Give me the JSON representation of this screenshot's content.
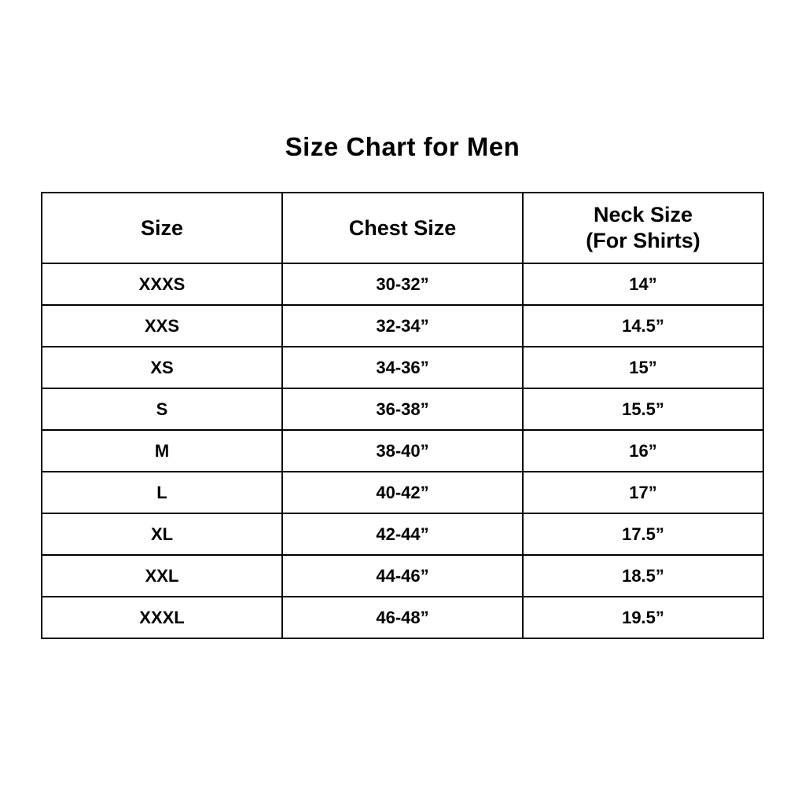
{
  "title": "Size Chart for Men",
  "colors": {
    "background": "#ffffff",
    "border": "#000000",
    "text": "#000000"
  },
  "table": {
    "headers": {
      "size": "Size",
      "chest": "Chest Size",
      "neck_line1": "Neck Size",
      "neck_line2": "(For Shirts)"
    },
    "rows": [
      [
        "XXXS",
        "30-32”",
        "14”"
      ],
      [
        "XXS",
        "32-34”",
        "14.5”"
      ],
      [
        "XS",
        "34-36”",
        "15”"
      ],
      [
        "S",
        "36-38”",
        "15.5”"
      ],
      [
        "M",
        "38-40”",
        "16”"
      ],
      [
        "L",
        "40-42”",
        "17”"
      ],
      [
        "XL",
        "42-44”",
        "17.5”"
      ],
      [
        "XXL",
        "44-46”",
        "18.5”"
      ],
      [
        "XXXL",
        "46-48”",
        "19.5”"
      ]
    ]
  },
  "chart_data": {
    "type": "table",
    "title": "Size Chart for Men",
    "columns": [
      "Size",
      "Chest Size",
      "Neck Size (For Shirts)"
    ],
    "rows": [
      {
        "size": "XXXS",
        "chest_size_in": "30-32”",
        "neck_size_in": "14”"
      },
      {
        "size": "XXS",
        "chest_size_in": "32-34”",
        "neck_size_in": "14.5”"
      },
      {
        "size": "XS",
        "chest_size_in": "34-36”",
        "neck_size_in": "15”"
      },
      {
        "size": "S",
        "chest_size_in": "36-38”",
        "neck_size_in": "15.5”"
      },
      {
        "size": "M",
        "chest_size_in": "38-40”",
        "neck_size_in": "16”"
      },
      {
        "size": "L",
        "chest_size_in": "40-42”",
        "neck_size_in": "17”"
      },
      {
        "size": "XL",
        "chest_size_in": "42-44”",
        "neck_size_in": "17.5”"
      },
      {
        "size": "XXL",
        "chest_size_in": "44-46”",
        "neck_size_in": "18.5”"
      },
      {
        "size": "XXXL",
        "chest_size_in": "46-48”",
        "neck_size_in": "19.5”"
      }
    ]
  }
}
